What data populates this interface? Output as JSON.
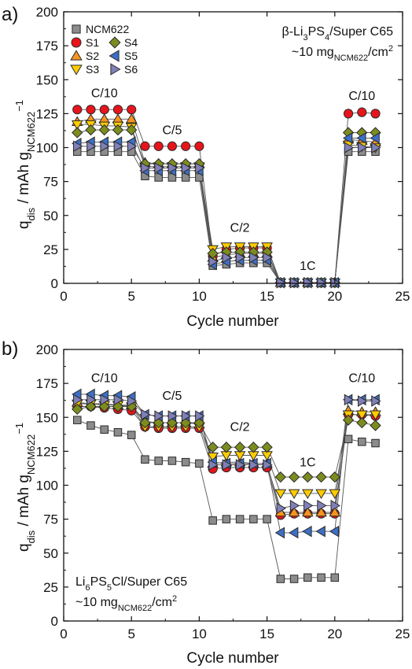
{
  "figure": {
    "panels": [
      {
        "panel_label": "a)",
        "info_line1": {
          "pre": "β-Li",
          "sub1": "3",
          "mid": "PS",
          "sub2": "4",
          "post": "/Super C65"
        },
        "info_line2": {
          "pre": "~10 mg",
          "sub": "NCM622",
          "mid": "/cm",
          "sup": "2"
        }
      },
      {
        "panel_label": "b)",
        "info_line1": {
          "pre": "Li",
          "sub1": "6",
          "mid": "PS",
          "sub2": "5",
          "post": "Cl/Super C65"
        },
        "info_line2": {
          "pre": "~10 mg",
          "sub": "NCM622",
          "mid": "/cm",
          "sup": "2"
        }
      }
    ],
    "xlabel": "Cycle number",
    "ylabel": {
      "q": "q",
      "q_sub": "dis",
      "unit": " / mAh g",
      "g_sub": "NCM622",
      "g_sup": "−1"
    }
  },
  "chart_data": [
    {
      "type": "scatter",
      "xlabel": "Cycle number",
      "ylabel": "q_dis / mAh g_NCM622^-1",
      "xlim": [
        0,
        25
      ],
      "ylim": [
        0,
        200
      ],
      "xticks": [
        0,
        5,
        10,
        15,
        20,
        25
      ],
      "yticks": [
        0,
        25,
        50,
        75,
        100,
        125,
        150,
        175,
        200
      ],
      "grid": false,
      "legend_position": "top-left",
      "x": [
        1,
        2,
        3,
        4,
        5,
        6,
        7,
        8,
        9,
        10,
        11,
        12,
        13,
        14,
        15,
        16,
        17,
        18,
        19,
        20,
        21,
        22,
        23
      ],
      "annotations": [
        {
          "text": "C/10",
          "x": 3,
          "y": 137
        },
        {
          "text": "C/5",
          "x": 8,
          "y": 110
        },
        {
          "text": "C/2",
          "x": 13,
          "y": 38
        },
        {
          "text": "1C",
          "x": 18,
          "y": 10
        },
        {
          "text": "C/10",
          "x": 22,
          "y": 135
        }
      ],
      "series": [
        {
          "name": "NCM622",
          "marker": "square",
          "color": "#8c8c8c",
          "values": [
            97,
            97,
            97,
            97,
            97,
            79,
            78,
            78,
            78,
            78,
            13,
            14,
            15,
            15,
            15,
            0.5,
            0.5,
            0.5,
            0.5,
            0.5,
            97,
            97,
            97
          ]
        },
        {
          "name": "S1",
          "marker": "circle",
          "color": "#e8141b",
          "values": [
            128,
            128,
            128,
            128,
            128,
            101,
            101,
            101,
            101,
            101,
            20,
            25,
            26,
            26,
            26,
            0.5,
            0.5,
            0.5,
            0.5,
            0.5,
            125,
            126,
            125
          ]
        },
        {
          "name": "S2",
          "marker": "triangle-up",
          "color": "#f7941d",
          "values": [
            119,
            121,
            121,
            121,
            121,
            89,
            88,
            88,
            88,
            88,
            19,
            21,
            22,
            22,
            22,
            0.5,
            0.5,
            0.5,
            0.5,
            0.5,
            106,
            105,
            104
          ]
        },
        {
          "name": "S3",
          "marker": "triangle-down",
          "color": "#ffcc00",
          "values": [
            117,
            117,
            116,
            116,
            115,
            86,
            86,
            86,
            86,
            86,
            25,
            27,
            27,
            27,
            27,
            0.5,
            0.5,
            0.5,
            0.5,
            0.5,
            102,
            101,
            100
          ]
        },
        {
          "name": "S4",
          "marker": "diamond",
          "color": "#7d8c1e",
          "values": [
            111,
            113,
            113,
            113,
            113,
            88,
            88,
            88,
            88,
            88,
            22,
            23,
            23,
            23,
            23,
            0.5,
            0.5,
            0.5,
            0.5,
            0.5,
            111,
            111,
            111
          ]
        },
        {
          "name": "S5",
          "marker": "triangle-left",
          "color": "#3d6fc4",
          "values": [
            103,
            104,
            104,
            104,
            104,
            83,
            83,
            83,
            83,
            83,
            14,
            16,
            17,
            17,
            17,
            0.5,
            0.5,
            0.5,
            0.5,
            0.5,
            107,
            107,
            107
          ]
        },
        {
          "name": "S6",
          "marker": "triangle-right",
          "color": "#8080b8",
          "values": [
            101,
            101,
            101,
            101,
            101,
            85,
            85,
            85,
            85,
            85,
            16,
            19,
            19,
            19,
            19,
            0.5,
            0.5,
            0.5,
            0.5,
            0.5,
            100,
            100,
            100
          ]
        }
      ]
    },
    {
      "type": "scatter",
      "xlabel": "Cycle number",
      "ylabel": "q_dis / mAh g_NCM622^-1",
      "xlim": [
        0,
        25
      ],
      "ylim": [
        0,
        200
      ],
      "xticks": [
        0,
        5,
        10,
        15,
        20,
        25
      ],
      "yticks": [
        0,
        25,
        50,
        75,
        100,
        125,
        150,
        175,
        200
      ],
      "grid": false,
      "legend_position": "none",
      "x": [
        1,
        2,
        3,
        4,
        5,
        6,
        7,
        8,
        9,
        10,
        11,
        12,
        13,
        14,
        15,
        16,
        17,
        18,
        19,
        20,
        21,
        22,
        23
      ],
      "annotations": [
        {
          "text": "C/10",
          "x": 3,
          "y": 176
        },
        {
          "text": "C/5",
          "x": 8,
          "y": 163
        },
        {
          "text": "C/2",
          "x": 13,
          "y": 140
        },
        {
          "text": "1C",
          "x": 18,
          "y": 114
        },
        {
          "text": "C/10",
          "x": 22,
          "y": 176
        }
      ],
      "series": [
        {
          "name": "NCM622",
          "marker": "square",
          "color": "#8c8c8c",
          "values": [
            148,
            144,
            141,
            139,
            137,
            119,
            118,
            118,
            117,
            116,
            74,
            75,
            75,
            75,
            75,
            31,
            31,
            32,
            32,
            32,
            134,
            132,
            131
          ]
        },
        {
          "name": "S1",
          "marker": "circle",
          "color": "#e8141b",
          "values": [
            158,
            158,
            157,
            156,
            155,
            143,
            142,
            142,
            142,
            142,
            112,
            113,
            113,
            113,
            113,
            78,
            79,
            79,
            79,
            79,
            152,
            152,
            151
          ]
        },
        {
          "name": "S2",
          "marker": "triangle-up",
          "color": "#f7941d",
          "values": [
            161,
            160,
            160,
            159,
            159,
            147,
            146,
            146,
            146,
            145,
            116,
            117,
            117,
            116,
            116,
            80,
            80,
            80,
            80,
            80,
            155,
            154,
            154
          ]
        },
        {
          "name": "S3",
          "marker": "triangle-down",
          "color": "#ffcc00",
          "values": [
            160,
            160,
            159,
            159,
            158,
            143,
            143,
            143,
            143,
            143,
            121,
            122,
            122,
            122,
            122,
            94,
            94,
            94,
            94,
            94,
            152,
            152,
            152
          ]
        },
        {
          "name": "S4",
          "marker": "diamond",
          "color": "#7d8c1e",
          "values": [
            156,
            158,
            158,
            158,
            158,
            146,
            146,
            146,
            146,
            146,
            128,
            128,
            128,
            128,
            128,
            106,
            106,
            106,
            106,
            106,
            148,
            146,
            144
          ]
        },
        {
          "name": "S5",
          "marker": "triangle-left",
          "color": "#3d6fc4",
          "values": [
            167,
            167,
            166,
            166,
            165,
            152,
            151,
            151,
            151,
            151,
            117,
            116,
            116,
            116,
            116,
            65,
            65,
            66,
            66,
            66,
            163,
            163,
            163
          ]
        },
        {
          "name": "S6",
          "marker": "triangle-right",
          "color": "#8080b8",
          "values": [
            163,
            163,
            163,
            163,
            162,
            152,
            151,
            151,
            151,
            151,
            115,
            115,
            115,
            115,
            115,
            83,
            85,
            85,
            85,
            85,
            163,
            162,
            162
          ]
        }
      ]
    }
  ]
}
